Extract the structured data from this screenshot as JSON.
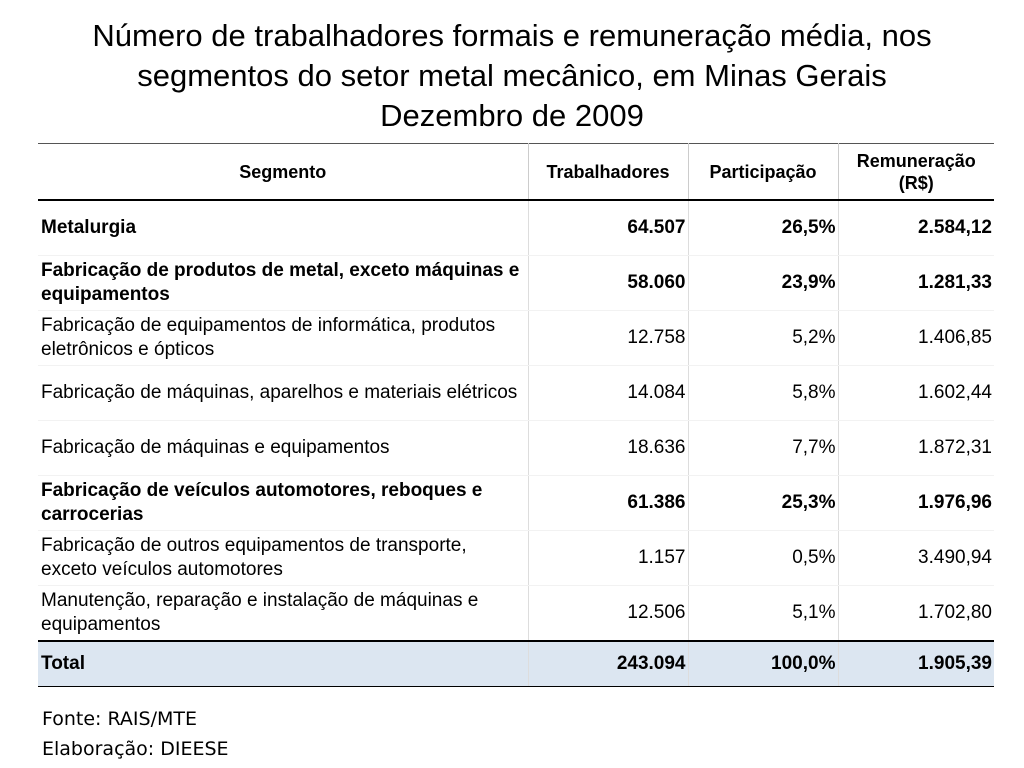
{
  "title": {
    "line1": "Número de trabalhadores formais e remuneração média, nos",
    "line2": "segmentos do setor metal mecânico, em Minas Gerais",
    "line3": "Dezembro de 2009"
  },
  "chart_data": {
    "type": "table",
    "columns": [
      "Segmento",
      "Trabalhadores",
      "Participação",
      "Remuneração (R$)"
    ],
    "rows": [
      {
        "segmento": "Metalurgia",
        "trabalhadores": "64.507",
        "participacao": "26,5%",
        "remuneracao": "2.584,12",
        "bold": true
      },
      {
        "segmento": "Fabricação de produtos de metal, exceto máquinas e equipamentos",
        "trabalhadores": "58.060",
        "participacao": "23,9%",
        "remuneracao": "1.281,33",
        "bold": true
      },
      {
        "segmento": "Fabricação de equipamentos de informática, produtos eletrônicos e ópticos",
        "trabalhadores": "12.758",
        "participacao": "5,2%",
        "remuneracao": "1.406,85",
        "bold": false
      },
      {
        "segmento": "Fabricação de máquinas, aparelhos e materiais elétricos",
        "trabalhadores": "14.084",
        "participacao": "5,8%",
        "remuneracao": "1.602,44",
        "bold": false
      },
      {
        "segmento": "Fabricação de máquinas e equipamentos",
        "trabalhadores": "18.636",
        "participacao": "7,7%",
        "remuneracao": "1.872,31",
        "bold": false
      },
      {
        "segmento": "Fabricação de veículos automotores, reboques e carrocerias",
        "trabalhadores": "61.386",
        "participacao": "25,3%",
        "remuneracao": "1.976,96",
        "bold": true
      },
      {
        "segmento": "Fabricação de outros equipamentos de transporte, exceto veículos automotores",
        "trabalhadores": "1.157",
        "participacao": "0,5%",
        "remuneracao": "3.490,94",
        "bold": false
      },
      {
        "segmento": "Manutenção, reparação e instalação de máquinas e equipamentos",
        "trabalhadores": "12.506",
        "participacao": "5,1%",
        "remuneracao": "1.702,80",
        "bold": false
      }
    ],
    "total": {
      "label": "Total",
      "trabalhadores": "243.094",
      "participacao": "100,0%",
      "remuneracao": "1.905,39"
    }
  },
  "colors": {
    "total_row_background": "#dce6f1"
  },
  "source": {
    "fonte": "Fonte: RAIS/MTE",
    "elaboracao": "Elaboração: DIEESE"
  }
}
